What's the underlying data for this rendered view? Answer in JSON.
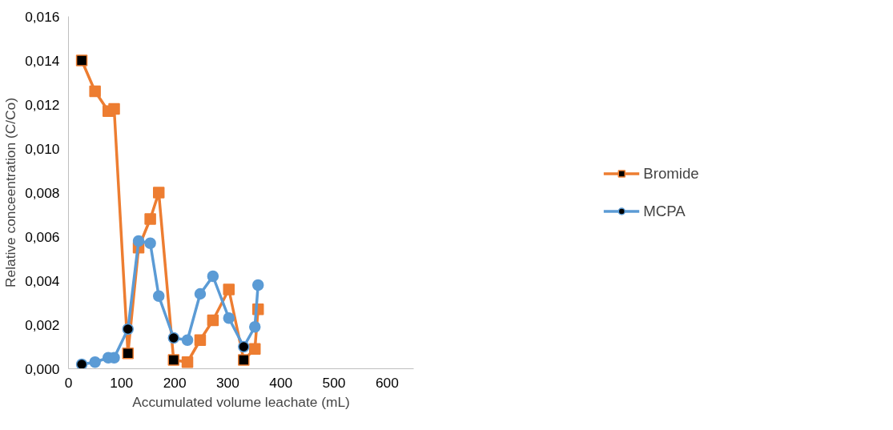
{
  "chart_data": {
    "type": "line",
    "xlabel": "Accumulated volume leachate (mL)",
    "ylabel": "Relative conceentration (C/Co)",
    "xlim": [
      0,
      650
    ],
    "xticks": [
      0,
      100,
      200,
      300,
      400,
      500,
      600
    ],
    "ylim": [
      0,
      0.016
    ],
    "yticks": [
      {
        "value": 0,
        "label": "0,000"
      },
      {
        "value": 0.002,
        "label": "0,002"
      },
      {
        "value": 0.004,
        "label": "0,004"
      },
      {
        "value": 0.006,
        "label": "0,006"
      },
      {
        "value": 0.008,
        "label": "0,008"
      },
      {
        "value": 0.01,
        "label": "0,010"
      },
      {
        "value": 0.012,
        "label": "0,012"
      },
      {
        "value": 0.014,
        "label": "0,014"
      },
      {
        "value": 0.016,
        "label": "0,016"
      }
    ],
    "grid": false,
    "legend": "right",
    "series": [
      {
        "name": "Bromide",
        "color": "#ed7d31",
        "marker": "square",
        "x": [
          25,
          50,
          75,
          86,
          112,
          132,
          154,
          170,
          198,
          224,
          248,
          272,
          302,
          330,
          351,
          357
        ],
        "values": [
          0.014,
          0.0126,
          0.0117,
          0.0118,
          0.0007,
          0.0055,
          0.0068,
          0.008,
          0.0004,
          0.0003,
          0.0013,
          0.0022,
          0.0036,
          0.0004,
          0.0009,
          0.0027
        ],
        "colors": [
          "#000000",
          "#ed7d31",
          "#ed7d31",
          "#ed7d31",
          "#000000",
          "#ed7d31",
          "#ed7d31",
          "#ed7d31",
          "#000000",
          "#ed7d31",
          "#ed7d31",
          "#ed7d31",
          "#ed7d31",
          "#000000",
          "#ed7d31",
          "#ed7d31"
        ]
      },
      {
        "name": "MCPA",
        "color": "#5b9bd5",
        "marker": "circle",
        "x": [
          25,
          50,
          75,
          86,
          112,
          132,
          154,
          170,
          198,
          224,
          248,
          272,
          302,
          330,
          351,
          357
        ],
        "values": [
          0.0002,
          0.0003,
          0.0005,
          0.0005,
          0.0018,
          0.0058,
          0.0057,
          0.0033,
          0.0014,
          0.0013,
          0.0034,
          0.0042,
          0.0023,
          0.001,
          0.0019,
          0.0038
        ],
        "colors": [
          "#000000",
          "#5b9bd5",
          "#5b9bd5",
          "#5b9bd5",
          "#000000",
          "#5b9bd5",
          "#5b9bd5",
          "#5b9bd5",
          "#000000",
          "#5b9bd5",
          "#5b9bd5",
          "#5b9bd5",
          "#5b9bd5",
          "#000000",
          "#5b9bd5",
          "#5b9bd5"
        ]
      }
    ]
  }
}
